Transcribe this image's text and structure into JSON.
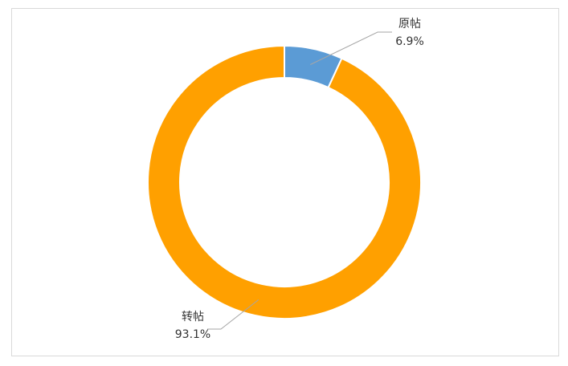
{
  "chart_data": {
    "type": "donut",
    "categories": [
      "原帖",
      "转帖"
    ],
    "values": [
      6.9,
      93.1
    ],
    "value_labels": [
      "6.9%",
      "93.1%"
    ],
    "colors": [
      "#5b9bd5",
      "#ffa000"
    ]
  }
}
